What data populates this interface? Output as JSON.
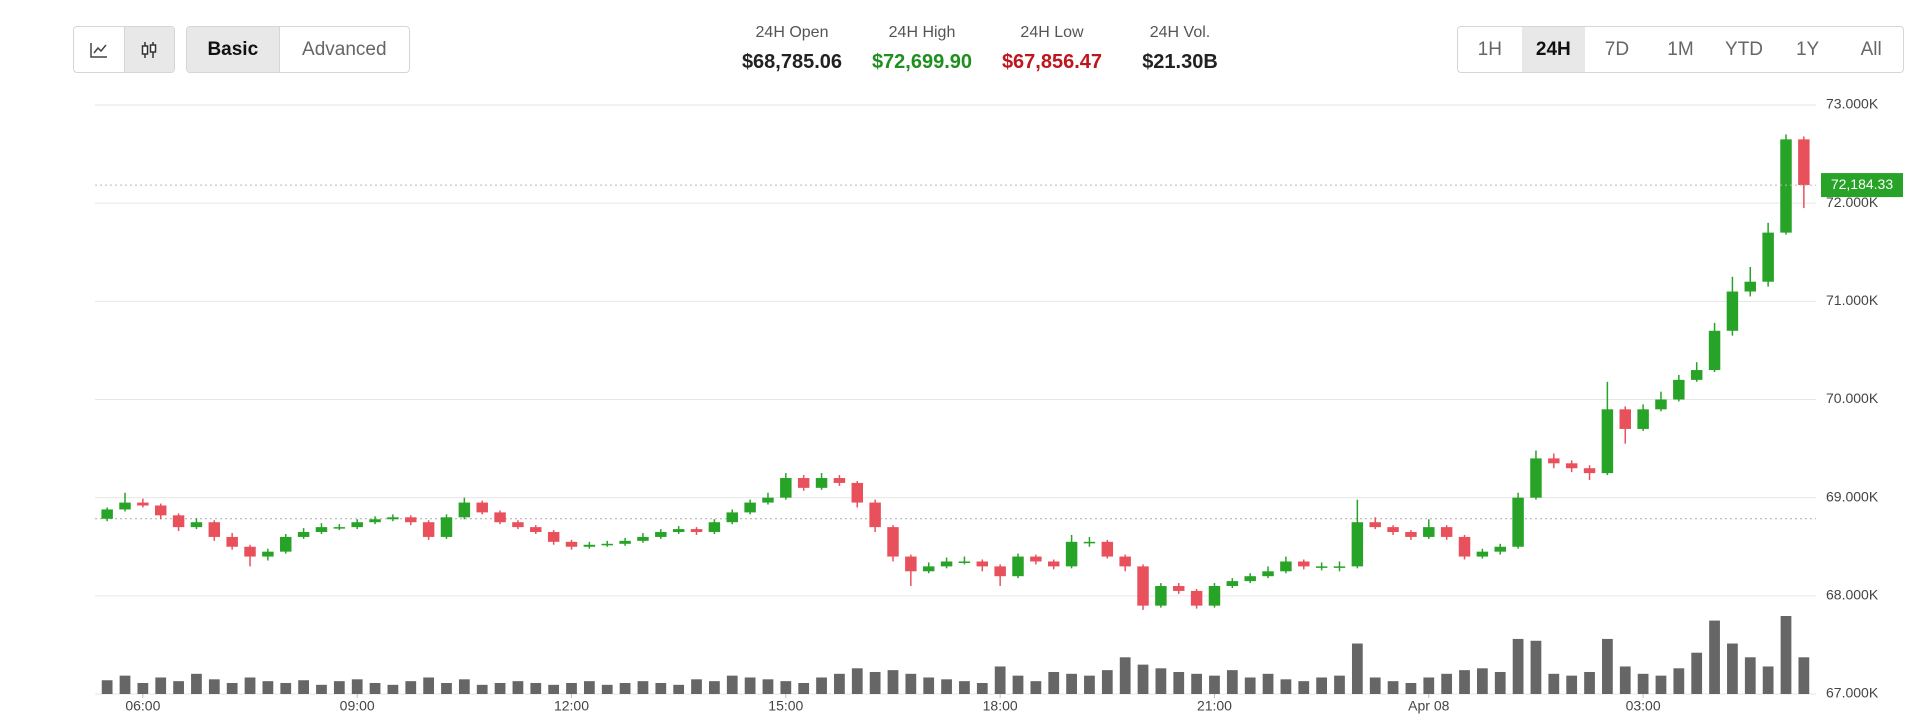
{
  "header": {
    "chart_buttons": [
      {
        "name": "line-chart",
        "active": false
      },
      {
        "name": "candlestick-chart",
        "active": true
      }
    ],
    "mode_tabs": [
      "Basic",
      "Advanced"
    ],
    "mode_active": 0,
    "stats": [
      {
        "label": "24H Open",
        "value": "$68,785.06",
        "color": "#222222"
      },
      {
        "label": "24H High",
        "value": "$72,699.90",
        "color": "#1f8f1f"
      },
      {
        "label": "24H Low",
        "value": "$67,856.47",
        "color": "#c0141e"
      },
      {
        "label": "24H Vol.",
        "value": "$21.30B",
        "color": "#222222"
      }
    ],
    "range_tabs": [
      "1H",
      "24H",
      "7D",
      "1M",
      "YTD",
      "1Y",
      "All"
    ],
    "range_active": 1
  },
  "chart_data": {
    "type": "candlestick",
    "up_color": "#27a327",
    "down_color": "#e8515c",
    "volume_color": "#666666",
    "grid": true,
    "xlim": [
      5.33,
      29.42
    ],
    "xticks": [
      {
        "value": 6,
        "label": "06:00"
      },
      {
        "value": 9,
        "label": "09:00"
      },
      {
        "value": 12,
        "label": "12:00"
      },
      {
        "value": 15,
        "label": "15:00"
      },
      {
        "value": 18,
        "label": "18:00"
      },
      {
        "value": 21,
        "label": "21:00"
      },
      {
        "value": 24,
        "label": "Apr 08"
      },
      {
        "value": 27,
        "label": "03:00"
      }
    ],
    "ylim": [
      67000,
      73000
    ],
    "yticks": [
      {
        "value": 67000,
        "label": "67.000K"
      },
      {
        "value": 68000,
        "label": "68.000K"
      },
      {
        "value": 69000,
        "label": "69.000K"
      },
      {
        "value": 70000,
        "label": "70.000K"
      },
      {
        "value": 71000,
        "label": "71.000K"
      },
      {
        "value": 72000,
        "label": "72.000K"
      },
      {
        "value": 73000,
        "label": "73.000K"
      }
    ],
    "last_price": {
      "value": 72184.33,
      "label": "72,184.33"
    },
    "x": [
      5.5,
      5.75,
      6,
      6.25,
      6.5,
      6.75,
      7,
      7.25,
      7.5,
      7.75,
      8,
      8.25,
      8.5,
      8.75,
      9,
      9.25,
      9.5,
      9.75,
      10,
      10.25,
      10.5,
      10.75,
      11,
      11.25,
      11.5,
      11.75,
      12,
      12.25,
      12.5,
      12.75,
      13,
      13.25,
      13.5,
      13.75,
      14,
      14.25,
      14.5,
      14.75,
      15,
      15.25,
      15.5,
      15.75,
      16,
      16.25,
      16.5,
      16.75,
      17,
      17.25,
      17.5,
      17.75,
      18,
      18.25,
      18.5,
      18.75,
      19,
      19.25,
      19.5,
      19.75,
      20,
      20.25,
      20.5,
      20.75,
      21,
      21.25,
      21.5,
      21.75,
      22,
      22.25,
      22.5,
      22.75,
      23,
      23.25,
      23.5,
      23.75,
      24,
      24.25,
      24.5,
      24.75,
      25,
      25.25,
      25.5,
      25.75,
      26,
      26.25,
      26.5,
      26.75,
      27,
      27.25,
      27.5,
      27.75,
      28,
      28.25,
      28.5,
      28.75,
      29,
      29.25
    ],
    "ohlc": [
      [
        68785.06,
        68900,
        68760,
        68880
      ],
      [
        68880,
        69050,
        68860,
        68950
      ],
      [
        68950,
        68990,
        68900,
        68920
      ],
      [
        68920,
        68940,
        68780,
        68820
      ],
      [
        68820,
        68840,
        68660,
        68700
      ],
      [
        68700,
        68790,
        68680,
        68750
      ],
      [
        68750,
        68770,
        68560,
        68600
      ],
      [
        68600,
        68640,
        68470,
        68500
      ],
      [
        68500,
        68520,
        68300,
        68400
      ],
      [
        68400,
        68480,
        68360,
        68450
      ],
      [
        68450,
        68630,
        68430,
        68600
      ],
      [
        68600,
        68690,
        68580,
        68650
      ],
      [
        68650,
        68740,
        68630,
        68700
      ],
      [
        68700,
        68730,
        68670,
        68700
      ],
      [
        68700,
        68780,
        68680,
        68750
      ],
      [
        68750,
        68810,
        68730,
        68780
      ],
      [
        68780,
        68830,
        68760,
        68800
      ],
      [
        68800,
        68820,
        68720,
        68750
      ],
      [
        68750,
        68770,
        68570,
        68600
      ],
      [
        68600,
        68830,
        68580,
        68800
      ],
      [
        68800,
        69000,
        68780,
        68950
      ],
      [
        68950,
        68970,
        68830,
        68850
      ],
      [
        68850,
        68870,
        68730,
        68750
      ],
      [
        68750,
        68770,
        68680,
        68700
      ],
      [
        68700,
        68720,
        68630,
        68650
      ],
      [
        68650,
        68670,
        68520,
        68550
      ],
      [
        68550,
        68570,
        68470,
        68500
      ],
      [
        68500,
        68550,
        68480,
        68520
      ],
      [
        68520,
        68560,
        68500,
        68530
      ],
      [
        68530,
        68590,
        68510,
        68560
      ],
      [
        68560,
        68640,
        68540,
        68600
      ],
      [
        68600,
        68680,
        68580,
        68650
      ],
      [
        68650,
        68710,
        68630,
        68680
      ],
      [
        68680,
        68700,
        68620,
        68650
      ],
      [
        68650,
        68780,
        68630,
        68750
      ],
      [
        68750,
        68880,
        68730,
        68850
      ],
      [
        68850,
        68980,
        68830,
        68950
      ],
      [
        68950,
        69050,
        68930,
        69000
      ],
      [
        69000,
        69250,
        68980,
        69200
      ],
      [
        69200,
        69230,
        69070,
        69100
      ],
      [
        69100,
        69250,
        69080,
        69200
      ],
      [
        69200,
        69230,
        69120,
        69150
      ],
      [
        69150,
        69170,
        68900,
        68950
      ],
      [
        68950,
        68980,
        68650,
        68700
      ],
      [
        68700,
        68720,
        68350,
        68400
      ],
      [
        68400,
        68420,
        68100,
        68250
      ],
      [
        68250,
        68340,
        68230,
        68300
      ],
      [
        68300,
        68390,
        68280,
        68350
      ],
      [
        68350,
        68400,
        68320,
        68350
      ],
      [
        68350,
        68370,
        68250,
        68300
      ],
      [
        68300,
        68320,
        68100,
        68200
      ],
      [
        68200,
        68430,
        68180,
        68400
      ],
      [
        68400,
        68420,
        68320,
        68350
      ],
      [
        68350,
        68370,
        68270,
        68300
      ],
      [
        68300,
        68620,
        68280,
        68550
      ],
      [
        68550,
        68600,
        68500,
        68550
      ],
      [
        68550,
        68570,
        68380,
        68400
      ],
      [
        68400,
        68420,
        68250,
        68300
      ],
      [
        68300,
        68320,
        67856.47,
        67900
      ],
      [
        67900,
        68130,
        67880,
        68100
      ],
      [
        68100,
        68130,
        68020,
        68050
      ],
      [
        68050,
        68070,
        67870,
        67900
      ],
      [
        67900,
        68130,
        67880,
        68100
      ],
      [
        68100,
        68180,
        68080,
        68150
      ],
      [
        68150,
        68230,
        68130,
        68200
      ],
      [
        68200,
        68300,
        68180,
        68250
      ],
      [
        68250,
        68400,
        68230,
        68350
      ],
      [
        68350,
        68370,
        68270,
        68300
      ],
      [
        68300,
        68340,
        68260,
        68300
      ],
      [
        68300,
        68350,
        68250,
        68300
      ],
      [
        68300,
        68980,
        68280,
        68750
      ],
      [
        68750,
        68800,
        68680,
        68700
      ],
      [
        68700,
        68720,
        68620,
        68650
      ],
      [
        68650,
        68670,
        68570,
        68600
      ],
      [
        68600,
        68780,
        68580,
        68700
      ],
      [
        68700,
        68720,
        68570,
        68600
      ],
      [
        68600,
        68620,
        68370,
        68400
      ],
      [
        68400,
        68480,
        68380,
        68450
      ],
      [
        68450,
        68530,
        68420,
        68500
      ],
      [
        68500,
        69050,
        68480,
        69000
      ],
      [
        69000,
        69480,
        68980,
        69400
      ],
      [
        69400,
        69450,
        69300,
        69350
      ],
      [
        69350,
        69380,
        69260,
        69300
      ],
      [
        69300,
        69330,
        69180,
        69250
      ],
      [
        69250,
        70180,
        69230,
        69900
      ],
      [
        69900,
        69930,
        69550,
        69700
      ],
      [
        69700,
        69950,
        69680,
        69900
      ],
      [
        69900,
        70080,
        69880,
        70000
      ],
      [
        70000,
        70250,
        69980,
        70200
      ],
      [
        70200,
        70380,
        70180,
        70300
      ],
      [
        70300,
        70780,
        70280,
        70700
      ],
      [
        70700,
        71250,
        70650,
        71100
      ],
      [
        71100,
        71350,
        71050,
        71200
      ],
      [
        71200,
        71800,
        71150,
        71700
      ],
      [
        71700,
        72699.9,
        71680,
        72650
      ],
      [
        72650,
        72680,
        71950,
        72184.33
      ]
    ],
    "volume": [
      15,
      20,
      12,
      18,
      14,
      22,
      16,
      12,
      18,
      14,
      12,
      15,
      10,
      14,
      16,
      12,
      10,
      14,
      18,
      12,
      16,
      10,
      12,
      14,
      12,
      10,
      12,
      14,
      10,
      12,
      14,
      12,
      10,
      16,
      14,
      20,
      18,
      16,
      14,
      12,
      18,
      22,
      28,
      24,
      26,
      22,
      18,
      16,
      14,
      12,
      30,
      20,
      14,
      24,
      22,
      20,
      26,
      40,
      32,
      28,
      24,
      22,
      20,
      26,
      18,
      22,
      16,
      14,
      18,
      20,
      55,
      18,
      14,
      12,
      18,
      22,
      26,
      28,
      24,
      60,
      58,
      22,
      20,
      24,
      60,
      30,
      22,
      20,
      28,
      45,
      80,
      55,
      40,
      30,
      85,
      40
    ]
  }
}
